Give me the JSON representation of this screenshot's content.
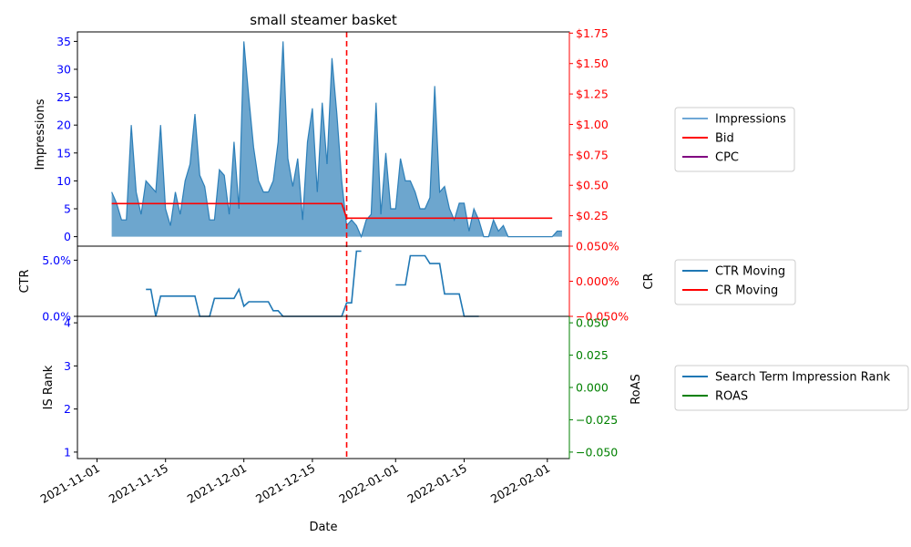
{
  "chart_data": {
    "type": "multi-panel time series",
    "title": "small steamer basket",
    "xlabel": "Date",
    "x_ticks": [
      "2021-11-01",
      "2021-11-15",
      "2021-12-01",
      "2021-12-15",
      "2022-01-01",
      "2022-01-15",
      "2022-02-01"
    ],
    "event_date": "2021-12-22",
    "colors": {
      "impressions": "#1f77b4",
      "bid": "#ff0000",
      "cpc": "#800080",
      "search_rank": "#1f77b4",
      "roas": "#008000",
      "left_axis": "#0000ff",
      "right_axis_top": "#ff0000",
      "right_axis_bottom": "#008000",
      "event_line": "#ff0000"
    },
    "panels": [
      {
        "id": "top",
        "ylabel_left": "Impressions",
        "ylim_left": [
          -1.7,
          36.7
        ],
        "yticks_left": [
          "0",
          "5",
          "10",
          "15",
          "20",
          "25",
          "30",
          "35"
        ],
        "yticks_left_values": [
          0,
          5,
          10,
          15,
          20,
          25,
          30,
          35
        ],
        "ylim_right": [
          0.0,
          1.76
        ],
        "yticks_right": [
          "$0.25",
          "$0.50",
          "$0.75",
          "$1.00",
          "$1.25",
          "$1.50",
          "$1.75"
        ],
        "yticks_right_values": [
          0.25,
          0.5,
          0.75,
          1.0,
          1.25,
          1.5,
          1.75
        ],
        "series": [
          {
            "name": "Impressions",
            "start_date": "2021-11-04",
            "values": [
              8,
              6,
              3,
              3,
              20,
              8,
              4,
              10,
              9,
              8,
              20,
              5,
              2,
              8,
              4,
              10,
              13,
              22,
              11,
              9,
              3,
              3,
              12,
              11,
              4,
              17,
              5,
              35,
              25,
              16,
              10,
              8,
              8,
              10,
              17,
              35,
              14,
              9,
              14,
              3,
              17,
              23,
              8,
              24,
              13,
              32,
              22,
              10,
              2,
              3,
              2,
              0,
              3,
              4,
              24,
              4,
              15,
              5,
              5,
              14,
              10,
              10,
              8,
              5,
              5,
              7,
              27,
              8,
              9,
              5,
              3,
              6,
              6,
              1,
              5,
              3,
              0,
              0,
              3,
              1,
              2,
              0,
              0,
              0,
              0,
              0,
              0,
              0,
              0,
              0,
              0,
              1,
              1
            ]
          },
          {
            "name": "Bid",
            "points": [
              [
                "2021-11-04",
                0.35
              ],
              [
                "2021-12-21",
                0.35
              ],
              [
                "2021-12-22",
                0.23
              ],
              [
                "2022-02-02",
                0.23
              ]
            ]
          },
          {
            "name": "CPC",
            "values": []
          }
        ]
      },
      {
        "id": "middle",
        "ylabel_left": "CTR",
        "ylabel_right": "CR",
        "ylim_left": [
          0.0,
          0.0625
        ],
        "yticks_left": [
          "0.0%",
          "5.0%"
        ],
        "yticks_left_values": [
          0.0,
          0.05
        ],
        "ylim_right": [
          -0.05,
          0.05
        ],
        "yticks_right": [
          "−0.050%",
          "0.000%",
          "0.050%"
        ],
        "yticks_right_values": [
          -0.05,
          0.0,
          0.05
        ],
        "series": [
          {
            "name": "CTR Moving",
            "segments": [
              [
                [
                  "2021-11-11",
                  0.024
                ],
                [
                  "2021-11-12",
                  0.024
                ],
                [
                  "2021-11-13",
                  0.0
                ],
                [
                  "2021-11-14",
                  0.018
                ],
                [
                  "2021-11-21",
                  0.018
                ],
                [
                  "2021-11-22",
                  0.0
                ],
                [
                  "2021-11-24",
                  0.0
                ],
                [
                  "2021-11-25",
                  0.016
                ],
                [
                  "2021-11-29",
                  0.016
                ],
                [
                  "2021-11-30",
                  0.024
                ],
                [
                  "2021-12-01",
                  0.009
                ],
                [
                  "2021-12-02",
                  0.013
                ],
                [
                  "2021-12-06",
                  0.013
                ],
                [
                  "2021-12-07",
                  0.005
                ],
                [
                  "2021-12-08",
                  0.005
                ],
                [
                  "2021-12-09",
                  0.0
                ],
                [
                  "2021-12-21",
                  0.0
                ],
                [
                  "2021-12-22",
                  0.012
                ],
                [
                  "2021-12-23",
                  0.012
                ],
                [
                  "2021-12-24",
                  0.058
                ],
                [
                  "2021-12-25",
                  0.058
                ]
              ],
              [
                [
                  "2022-01-01",
                  0.028
                ],
                [
                  "2022-01-03",
                  0.028
                ],
                [
                  "2022-01-04",
                  0.054
                ],
                [
                  "2022-01-07",
                  0.054
                ],
                [
                  "2022-01-08",
                  0.047
                ],
                [
                  "2022-01-10",
                  0.047
                ],
                [
                  "2022-01-11",
                  0.02
                ],
                [
                  "2022-01-14",
                  0.02
                ],
                [
                  "2022-01-15",
                  0.0
                ],
                [
                  "2022-01-18",
                  0.0
                ]
              ]
            ]
          },
          {
            "name": "CR Moving",
            "values": []
          }
        ]
      },
      {
        "id": "bottom",
        "ylabel_left": "IS Rank",
        "ylabel_right": "RoAS",
        "ylim_left": [
          0.85,
          4.15
        ],
        "yticks_left": [
          "1",
          "2",
          "3",
          "4"
        ],
        "yticks_left_values": [
          1,
          2,
          3,
          4
        ],
        "ylim_right": [
          -0.055,
          0.055
        ],
        "yticks_right": [
          "−0.050",
          "−0.025",
          "0.000",
          "0.025",
          "0.050"
        ],
        "yticks_right_values": [
          -0.05,
          -0.025,
          0.0,
          0.025,
          0.05
        ],
        "series": [
          {
            "name": "Search Term Impression Rank",
            "values": []
          },
          {
            "name": "ROAS",
            "values": []
          }
        ]
      }
    ],
    "legends": [
      {
        "panel": "top",
        "entries": [
          {
            "label": "Impressions",
            "color": "#6fa8d6"
          },
          {
            "label": "Bid",
            "color": "#ff0000"
          },
          {
            "label": "CPC",
            "color": "#800080"
          }
        ]
      },
      {
        "panel": "middle",
        "entries": [
          {
            "label": "CTR Moving",
            "color": "#1f77b4"
          },
          {
            "label": "CR Moving",
            "color": "#ff0000"
          }
        ]
      },
      {
        "panel": "bottom",
        "entries": [
          {
            "label": "Search Term Impression Rank",
            "color": "#1f77b4"
          },
          {
            "label": "ROAS",
            "color": "#008000"
          }
        ]
      }
    ]
  }
}
